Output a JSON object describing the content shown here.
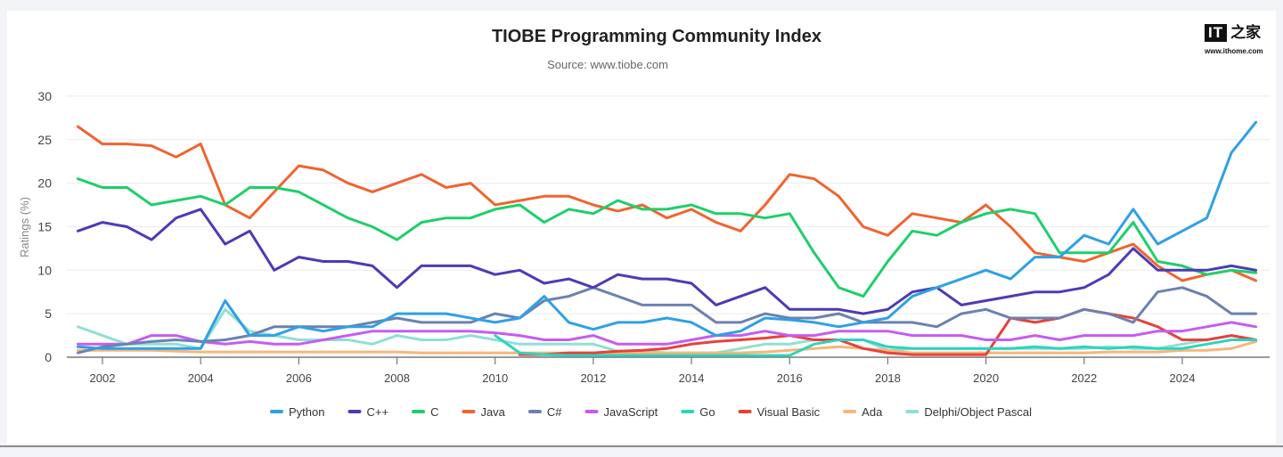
{
  "logo": {
    "mark": "IT",
    "cn": "之家",
    "url": "www.ithome.com"
  },
  "chart_data": {
    "type": "line",
    "title": "TIOBE Programming Community Index",
    "subtitle": "Source: www.tiobe.com",
    "xlabel": "",
    "ylabel": "Ratings (%)",
    "xlim": [
      2001.5,
      2025.5
    ],
    "ylim": [
      0,
      30
    ],
    "yticks": [
      0,
      5,
      10,
      15,
      20,
      25,
      30
    ],
    "xticks": [
      2002,
      2004,
      2006,
      2008,
      2010,
      2012,
      2014,
      2016,
      2018,
      2020,
      2022,
      2024
    ],
    "grid": true,
    "legend": "bottom",
    "x": [
      2001.5,
      2002,
      2002.5,
      2003,
      2003.5,
      2004,
      2004.5,
      2005,
      2005.5,
      2006,
      2006.5,
      2007,
      2007.5,
      2008,
      2008.5,
      2009,
      2009.5,
      2010,
      2010.5,
      2011,
      2011.5,
      2012,
      2012.5,
      2013,
      2013.5,
      2014,
      2014.5,
      2015,
      2015.5,
      2016,
      2016.5,
      2017,
      2017.5,
      2018,
      2018.5,
      2019,
      2019.5,
      2020,
      2020.5,
      2021,
      2021.5,
      2022,
      2022.5,
      2023,
      2023.5,
      2024,
      2024.5,
      2025,
      2025.5
    ],
    "series": [
      {
        "name": "Python",
        "color": "#2fa0e6",
        "values": [
          1.2,
          1,
          1,
          1,
          1,
          1,
          6.5,
          2.5,
          2.5,
          3.5,
          3,
          3.5,
          3.5,
          5,
          5,
          5,
          4.5,
          4,
          4.5,
          7,
          4,
          3.2,
          4,
          4,
          4.5,
          4,
          2.5,
          3,
          4.5,
          4.3,
          4,
          3.5,
          4,
          4.5,
          7,
          8,
          9,
          10,
          9,
          11.5,
          11.5,
          14,
          13,
          17,
          13,
          14.5,
          16,
          23.5,
          27
        ]
      },
      {
        "name": "C++",
        "color": "#4b3bb5",
        "values": [
          14.5,
          15.5,
          15,
          13.5,
          16,
          17,
          13,
          14.5,
          10,
          11.5,
          11,
          11,
          10.5,
          8,
          10.5,
          10.5,
          10.5,
          9.5,
          10,
          8.5,
          9,
          8,
          9.5,
          9,
          9,
          8.5,
          6,
          7,
          8,
          5.5,
          5.5,
          5.5,
          5,
          5.5,
          7.5,
          8,
          6,
          6.5,
          7,
          7.5,
          7.5,
          8,
          9.5,
          12.5,
          10,
          10,
          10,
          10.5,
          10
        ]
      },
      {
        "name": "C",
        "color": "#1ecf6a",
        "values": [
          20.5,
          19.5,
          19.5,
          17.5,
          18,
          18.5,
          17.5,
          19.5,
          19.5,
          19,
          17.5,
          16,
          15,
          13.5,
          15.5,
          16,
          16,
          17,
          17.5,
          15.5,
          17,
          16.5,
          18,
          17,
          17,
          17.5,
          16.5,
          16.5,
          16,
          16.5,
          12,
          8,
          7,
          11,
          14.5,
          14,
          15.5,
          16.5,
          17,
          16.5,
          12,
          12,
          12,
          15.5,
          11,
          10.5,
          9.5,
          10,
          9.7
        ]
      },
      {
        "name": "Java",
        "color": "#f0642f",
        "values": [
          26.5,
          24.5,
          24.5,
          24.3,
          23,
          24.5,
          17.5,
          16,
          19,
          22,
          21.5,
          20,
          19,
          20,
          21,
          19.5,
          20,
          17.5,
          18,
          18.5,
          18.5,
          17.5,
          16.8,
          17.5,
          16,
          17,
          15.5,
          14.5,
          17.5,
          21,
          20.5,
          18.5,
          15,
          14,
          16.5,
          16,
          15.5,
          17.5,
          15,
          12,
          11.5,
          11,
          12,
          13,
          10.5,
          8.8,
          9.5,
          10,
          8.8
        ]
      },
      {
        "name": "C#",
        "color": "#6b82b0",
        "values": [
          0.5,
          1.2,
          1.5,
          1.8,
          2,
          1.8,
          2,
          2.5,
          3.5,
          3.5,
          3.5,
          3.5,
          4,
          4.5,
          4,
          4,
          4,
          5,
          4.5,
          6.5,
          7,
          8,
          7,
          6,
          6,
          6,
          4,
          4,
          5,
          4.5,
          4.5,
          5,
          4,
          4,
          4,
          3.5,
          5,
          5.5,
          4.5,
          4.5,
          4.5,
          5.5,
          5,
          4,
          7.5,
          8,
          7,
          5,
          5
        ]
      },
      {
        "name": "JavaScript",
        "color": "#c65cf0",
        "values": [
          1.5,
          1.5,
          1.5,
          2.5,
          2.5,
          1.8,
          1.5,
          1.8,
          1.5,
          1.5,
          2,
          2.5,
          3,
          3,
          3,
          3,
          3,
          2.8,
          2.5,
          2,
          2,
          2.5,
          1.5,
          1.5,
          1.5,
          2,
          2.5,
          2.5,
          3,
          2.5,
          2.5,
          3,
          3,
          3,
          2.5,
          2.5,
          2.5,
          2,
          2,
          2.5,
          2,
          2.5,
          2.5,
          2.5,
          3,
          3,
          3.5,
          4,
          3.5
        ]
      },
      {
        "name": "Go",
        "color": "#2dd4bf",
        "values": [
          null,
          null,
          null,
          null,
          null,
          null,
          null,
          null,
          null,
          null,
          null,
          null,
          null,
          null,
          null,
          null,
          null,
          2.5,
          0.5,
          0.3,
          0.2,
          0.2,
          0.2,
          0.2,
          0.2,
          0.2,
          0.2,
          0.2,
          0.2,
          0.2,
          1.5,
          2,
          2,
          1.2,
          1,
          1,
          1,
          1,
          1,
          1.2,
          1,
          1.2,
          1,
          1.2,
          1,
          1,
          1.5,
          2,
          2
        ]
      },
      {
        "name": "Visual Basic",
        "color": "#e8413a",
        "values": [
          null,
          null,
          null,
          null,
          null,
          null,
          null,
          null,
          null,
          null,
          null,
          null,
          null,
          null,
          null,
          null,
          null,
          null,
          0.3,
          0.3,
          0.5,
          0.5,
          0.7,
          0.8,
          1,
          1.5,
          1.8,
          2,
          2.2,
          2.5,
          2,
          2,
          1,
          0.5,
          0.3,
          0.3,
          0.3,
          0.3,
          4.5,
          4,
          4.5,
          5.5,
          5,
          4.5,
          3.5,
          2,
          2,
          2.5,
          2
        ]
      },
      {
        "name": "Ada",
        "color": "#f6b67a",
        "values": [
          0.8,
          0.8,
          0.8,
          0.8,
          0.7,
          0.6,
          0.6,
          0.6,
          0.6,
          0.6,
          0.6,
          0.6,
          0.6,
          0.6,
          0.5,
          0.5,
          0.5,
          0.5,
          0.5,
          0.5,
          0.5,
          0.5,
          0.5,
          0.5,
          0.5,
          0.5,
          0.5,
          0.5,
          0.6,
          0.8,
          1,
          1.2,
          1,
          0.8,
          0.5,
          0.5,
          0.5,
          0.5,
          0.5,
          0.5,
          0.5,
          0.5,
          0.6,
          0.6,
          0.6,
          0.8,
          0.8,
          1,
          1.8
        ]
      },
      {
        "name": "Delphi/Object Pascal",
        "color": "#8fe0d4",
        "values": [
          3.5,
          2.5,
          1.5,
          1.5,
          1.5,
          1,
          5.5,
          3,
          2.5,
          2,
          2,
          2,
          1.5,
          2.5,
          2,
          2,
          2.5,
          2,
          1.5,
          1.5,
          1.5,
          1.5,
          0.7,
          0.7,
          0.5,
          0.5,
          0.5,
          1,
          1.5,
          1.5,
          2,
          2,
          2,
          0.8,
          1,
          1,
          1,
          1,
          1,
          1,
          1,
          1,
          1.2,
          1,
          1,
          1.5,
          2,
          2.5,
          2
        ]
      }
    ]
  }
}
